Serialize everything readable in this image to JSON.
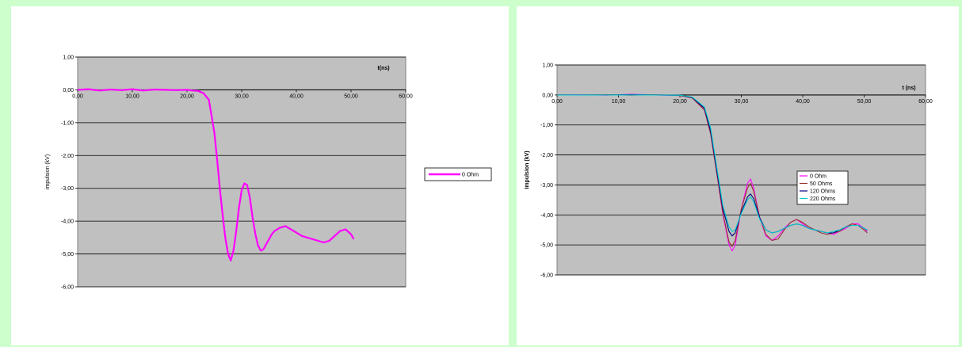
{
  "chart_data": [
    {
      "type": "line",
      "xlabel": "t(ns)",
      "ylabel": "impulsion (kV)",
      "xlim": [
        0,
        60
      ],
      "ylim": [
        -6,
        1
      ],
      "xticks": [
        "0,00",
        "10,00",
        "20,00",
        "30,00",
        "40,00",
        "50,00",
        "60,00"
      ],
      "yticks": [
        "1,00",
        "0,00",
        "-1,00",
        "-2,00",
        "-3,00",
        "-4,00",
        "-5,00",
        "-6,00"
      ],
      "plot_bg": "#c0c0c0",
      "grid": true,
      "legend_position": "right",
      "series": [
        {
          "name": "0 Ohm",
          "color": "#ff00ff",
          "x": [
            0,
            2,
            4,
            6,
            8,
            10,
            12,
            14,
            16,
            18,
            20,
            21,
            22,
            23,
            24,
            25,
            25.5,
            26,
            26.5,
            27,
            27.5,
            28,
            28.5,
            29,
            29.5,
            30,
            30.5,
            31,
            31.5,
            32,
            32.5,
            33,
            33.5,
            34,
            34.5,
            35,
            35.5,
            36,
            37,
            38,
            39,
            40,
            41,
            42,
            43,
            44,
            45,
            46,
            47,
            48,
            49,
            50,
            50.5
          ],
          "y": [
            0.0,
            0.02,
            -0.02,
            0.01,
            -0.01,
            0.02,
            -0.02,
            0.01,
            0.0,
            -0.01,
            0.0,
            -0.02,
            -0.03,
            -0.1,
            -0.3,
            -1.3,
            -2.1,
            -3.0,
            -3.8,
            -4.5,
            -5.0,
            -5.2,
            -4.9,
            -4.3,
            -3.6,
            -3.05,
            -2.85,
            -2.9,
            -3.3,
            -3.9,
            -4.4,
            -4.75,
            -4.9,
            -4.85,
            -4.7,
            -4.55,
            -4.4,
            -4.3,
            -4.2,
            -4.15,
            -4.25,
            -4.35,
            -4.45,
            -4.5,
            -4.55,
            -4.6,
            -4.65,
            -4.6,
            -4.45,
            -4.3,
            -4.25,
            -4.4,
            -4.55
          ]
        }
      ]
    },
    {
      "type": "line",
      "xlabel": "t (ns)",
      "ylabel": "Impulsion (kV)",
      "xlim": [
        0,
        60
      ],
      "ylim": [
        -6,
        1
      ],
      "xticks": [
        "0,00",
        "10,00",
        "20,00",
        "30,00",
        "40,00",
        "50,00",
        "60,00"
      ],
      "yticks": [
        "1,00",
        "0,00",
        "-1,00",
        "-2,00",
        "-3,00",
        "-4,00",
        "-5,00",
        "-6,00"
      ],
      "plot_bg": "#c0c0c0",
      "grid": true,
      "legend_position": "inside-center",
      "series": [
        {
          "name": "0 Ohm",
          "color": "#ff00ff",
          "x": [
            0,
            4,
            8,
            12,
            16,
            20,
            22,
            24,
            25,
            26,
            27,
            28,
            28.5,
            29,
            30,
            31,
            31.5,
            32,
            33,
            34,
            35,
            36,
            37,
            38,
            39,
            40,
            41,
            42,
            43,
            44,
            45,
            46,
            47,
            48,
            49,
            50,
            50.5
          ],
          "y": [
            0.0,
            0.01,
            -0.01,
            0.02,
            0.0,
            -0.02,
            -0.1,
            -0.5,
            -1.3,
            -2.6,
            -4.0,
            -5.0,
            -5.2,
            -5.0,
            -3.8,
            -2.95,
            -2.8,
            -3.1,
            -4.1,
            -4.7,
            -4.85,
            -4.7,
            -4.45,
            -4.25,
            -4.15,
            -4.3,
            -4.45,
            -4.5,
            -4.55,
            -4.6,
            -4.65,
            -4.55,
            -4.45,
            -4.3,
            -4.3,
            -4.45,
            -4.55
          ]
        },
        {
          "name": "50 Ohms",
          "color": "#993333",
          "x": [
            0,
            4,
            8,
            12,
            16,
            20,
            22,
            24,
            25,
            26,
            27,
            28,
            28.5,
            29,
            30,
            31,
            31.5,
            32,
            33,
            34,
            35,
            36,
            37,
            38,
            39,
            40,
            41,
            42,
            43,
            44,
            45,
            46,
            47,
            48,
            49,
            50,
            50.5
          ],
          "y": [
            0.0,
            0.0,
            0.01,
            -0.01,
            0.01,
            -0.02,
            -0.1,
            -0.5,
            -1.3,
            -2.6,
            -3.95,
            -4.9,
            -5.05,
            -4.85,
            -3.8,
            -3.1,
            -2.95,
            -3.2,
            -4.1,
            -4.65,
            -4.85,
            -4.8,
            -4.5,
            -4.25,
            -4.15,
            -4.25,
            -4.4,
            -4.5,
            -4.6,
            -4.65,
            -4.6,
            -4.55,
            -4.4,
            -4.3,
            -4.35,
            -4.5,
            -4.6
          ]
        },
        {
          "name": "120 Ohms",
          "color": "#000080",
          "x": [
            0,
            4,
            8,
            12,
            16,
            20,
            22,
            24,
            25,
            26,
            27,
            28,
            28.5,
            29,
            30,
            31,
            31.5,
            32,
            33,
            34,
            35,
            36,
            37,
            38,
            39,
            40,
            41,
            42,
            43,
            44,
            45,
            46,
            47,
            48,
            49,
            50,
            50.5
          ],
          "y": [
            0.0,
            0.0,
            0.0,
            0.01,
            0.0,
            -0.01,
            -0.08,
            -0.45,
            -1.2,
            -2.5,
            -3.8,
            -4.55,
            -4.7,
            -4.6,
            -3.9,
            -3.4,
            -3.3,
            -3.45,
            -4.1,
            -4.5,
            -4.6,
            -4.55,
            -4.45,
            -4.35,
            -4.3,
            -4.35,
            -4.45,
            -4.5,
            -4.55,
            -4.6,
            -4.6,
            -4.5,
            -4.4,
            -4.35,
            -4.35,
            -4.45,
            -4.5
          ]
        },
        {
          "name": "220 Ohms",
          "color": "#00cccc",
          "x": [
            0,
            4,
            8,
            12,
            16,
            20,
            22,
            24,
            25,
            26,
            27,
            28,
            28.5,
            29,
            30,
            31,
            31.5,
            32,
            33,
            34,
            35,
            36,
            37,
            38,
            39,
            40,
            41,
            42,
            43,
            44,
            45,
            46,
            47,
            48,
            49,
            50,
            50.5
          ],
          "y": [
            0.0,
            0.0,
            0.0,
            0.0,
            0.0,
            -0.01,
            -0.07,
            -0.4,
            -1.1,
            -2.4,
            -3.7,
            -4.4,
            -4.55,
            -4.5,
            -3.95,
            -3.5,
            -3.4,
            -3.55,
            -4.15,
            -4.5,
            -4.6,
            -4.55,
            -4.45,
            -4.35,
            -4.3,
            -4.35,
            -4.45,
            -4.5,
            -4.55,
            -4.6,
            -4.55,
            -4.5,
            -4.4,
            -4.35,
            -4.35,
            -4.45,
            -4.5
          ]
        }
      ]
    }
  ]
}
